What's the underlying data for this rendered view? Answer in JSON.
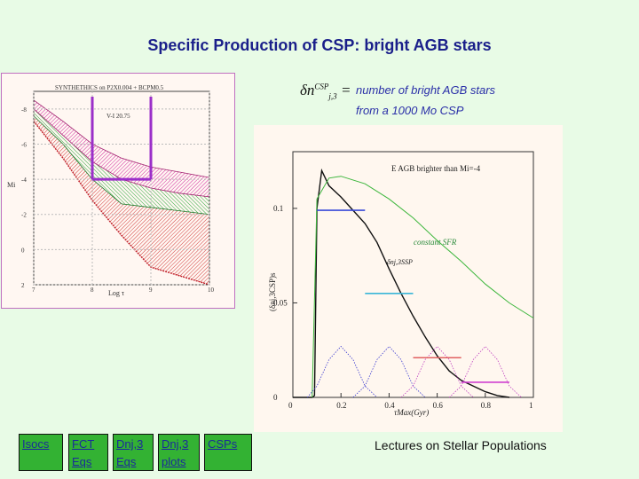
{
  "slide": {
    "title": "Specific Production of CSP: bright AGB stars",
    "note_line1": "number of bright AGB stars",
    "note_line2": "from a 1000 Mo CSP",
    "footer": "Lectures on Stellar Populations",
    "formula": {
      "base": "δn",
      "sup": "CSP",
      "sub": "j,3",
      "eq": "="
    }
  },
  "nav": [
    {
      "label": "Isocs"
    },
    {
      "label": "FCT Eqs"
    },
    {
      "label": "Dnj,3 Eqs"
    },
    {
      "label": "Dnj,3 plots"
    },
    {
      "label": "CSPs"
    }
  ],
  "colors": {
    "title": "#1a1f8a",
    "nav_bg": "#33b233",
    "page_bg": "#e8fbe6",
    "highlight": "#9b2fc9"
  },
  "chart_data": [
    {
      "type": "area",
      "title": "SYNTHETHICS on P2X0.004 + BCPM0.5",
      "xlabel": "Log τ",
      "ylabel": "Mi",
      "xlim": [
        7,
        10
      ],
      "ylim": [
        2,
        -9
      ],
      "x_ticks": [
        "7",
        "8",
        "9",
        "10"
      ],
      "y_ticks": [
        "-8",
        "-6",
        "-4",
        "-2",
        "0",
        "2"
      ],
      "annotation": "V-I 20.75",
      "series": [
        {
          "x": [
            7.0,
            7.5,
            8.0,
            8.5,
            9.0,
            9.5,
            10.0
          ],
          "values": [
            -8.5,
            -7.3,
            -6.0,
            -5.2,
            -4.7,
            -4.4,
            -4.1
          ]
        },
        {
          "x": [
            7.0,
            7.5,
            8.0,
            8.5,
            9.0,
            9.5,
            10.0
          ],
          "values": [
            -8.0,
            -6.5,
            -5.0,
            -4.0,
            -3.5,
            -3.2,
            -3.0
          ]
        },
        {
          "x": [
            7.0,
            7.5,
            8.0,
            8.5,
            9.0,
            9.5,
            10.0
          ],
          "values": [
            -7.6,
            -6.0,
            -4.0,
            -2.6,
            -2.4,
            -2.2,
            -2.0
          ]
        },
        {
          "x": [
            7.0,
            7.5,
            8.0,
            8.5,
            9.0,
            9.5,
            10.0
          ],
          "values": [
            -7.3,
            -5.2,
            -2.8,
            -0.8,
            1.0,
            1.5,
            2.0
          ]
        }
      ]
    },
    {
      "type": "line",
      "title": "E  AGB brighter than Mi=-4",
      "xlabel": "τMax(Gyr)",
      "ylabel": "(δnj,3CSP)s",
      "xlim": [
        0,
        1
      ],
      "ylim": [
        0,
        0.13
      ],
      "x_ticks": [
        "0",
        "0.2",
        "0.4",
        "0.6",
        "0.8",
        "1"
      ],
      "y_ticks": [
        "0",
        "0.05",
        "0.1"
      ],
      "annotations": [
        "constant SFR",
        "δnj,3SSP"
      ],
      "series": [
        {
          "x": [
            0.0,
            0.08,
            0.09,
            0.1,
            0.12,
            0.15,
            0.2,
            0.25,
            0.3,
            0.35,
            0.4,
            0.45,
            0.5,
            0.55,
            0.6,
            0.65,
            0.7,
            0.75,
            0.8,
            0.85,
            0.9
          ],
          "values": [
            0.0,
            0.0,
            0.001,
            0.1,
            0.12,
            0.112,
            0.106,
            0.099,
            0.092,
            0.082,
            0.068,
            0.055,
            0.043,
            0.032,
            0.022,
            0.014,
            0.009,
            0.006,
            0.003,
            0.001,
            0.0
          ]
        },
        {
          "x": [
            0.08,
            0.1,
            0.15,
            0.2,
            0.3,
            0.4,
            0.5,
            0.6,
            0.7,
            0.8,
            0.9,
            1.0
          ],
          "values": [
            0.0,
            0.105,
            0.116,
            0.117,
            0.113,
            0.105,
            0.095,
            0.083,
            0.072,
            0.06,
            0.05,
            0.042
          ]
        },
        {
          "x": [
            0.06,
            0.1,
            0.15,
            0.2,
            0.25,
            0.3,
            0.35
          ],
          "values": [
            0.0,
            0.006,
            0.02,
            0.027,
            0.02,
            0.006,
            0.0
          ]
        },
        {
          "x": [
            0.25,
            0.3,
            0.35,
            0.4,
            0.45,
            0.5,
            0.55
          ],
          "values": [
            0.0,
            0.006,
            0.02,
            0.027,
            0.02,
            0.006,
            0.0
          ]
        },
        {
          "x": [
            0.45,
            0.5,
            0.55,
            0.6,
            0.65,
            0.7,
            0.75
          ],
          "values": [
            0.0,
            0.006,
            0.02,
            0.027,
            0.02,
            0.006,
            0.0
          ]
        },
        {
          "x": [
            0.65,
            0.7,
            0.75,
            0.8,
            0.85,
            0.9,
            0.95
          ],
          "values": [
            0.0,
            0.006,
            0.02,
            0.027,
            0.02,
            0.006,
            0.0
          ]
        }
      ],
      "level_markers": [
        {
          "x": [
            0.1,
            0.3
          ],
          "value": 0.099
        },
        {
          "x": [
            0.3,
            0.5
          ],
          "value": 0.055
        },
        {
          "x": [
            0.5,
            0.7
          ],
          "value": 0.021
        },
        {
          "x": [
            0.7,
            0.9
          ],
          "value": 0.008
        }
      ]
    }
  ]
}
